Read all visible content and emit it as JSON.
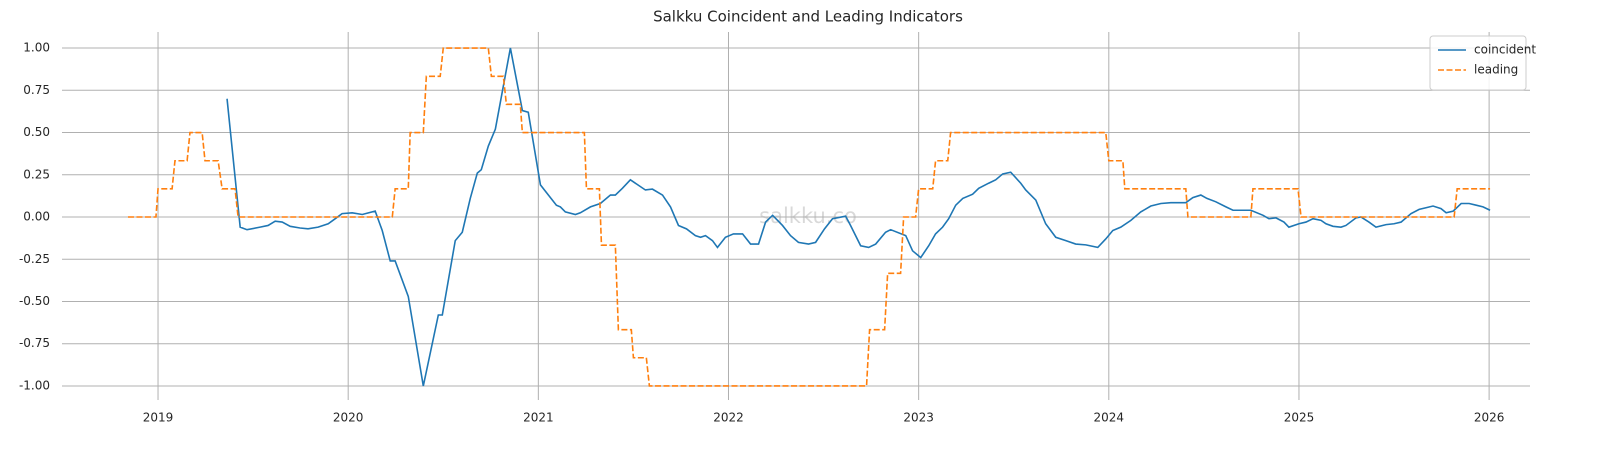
{
  "chart_data": {
    "type": "line",
    "title": "Salkku Coincident and Leading Indicators",
    "annotation": "salkku.co",
    "xlim": [
      2018.495,
      2026.215
    ],
    "xticks": [
      2019,
      2020,
      2021,
      2022,
      2023,
      2024,
      2025,
      2026
    ],
    "ylim": [
      -1.083,
      1.095
    ],
    "yticks": [
      {
        "value": -1,
        "label": "-1.00"
      },
      {
        "value": -0.75,
        "label": "-0.75"
      },
      {
        "value": -0.5,
        "label": "-0.50"
      },
      {
        "value": -0.25,
        "label": "-0.25"
      },
      {
        "value": 0,
        "label": "0.00"
      },
      {
        "value": 0.25,
        "label": "0.25"
      },
      {
        "value": 0.5,
        "label": "0.50"
      },
      {
        "value": 0.75,
        "label": "0.75"
      },
      {
        "value": 1,
        "label": "1.00"
      }
    ],
    "grid": true,
    "legend": "upper right",
    "series": [
      {
        "name": "coincident",
        "color": "#1f77b4",
        "linestyle": "solid",
        "x": [
          2019.363,
          2019.432,
          2019.468,
          2019.537,
          2019.579,
          2019.616,
          2019.653,
          2019.695,
          2019.747,
          2019.789,
          2019.842,
          2019.895,
          2019.932,
          2019.968,
          2020.021,
          2020.074,
          2020.142,
          2020.179,
          2020.221,
          2020.247,
          2020.316,
          2020.395,
          2020.474,
          2020.495,
          2020.563,
          2020.6,
          2020.642,
          2020.679,
          2020.7,
          2020.737,
          2020.774,
          2020.853,
          2020.916,
          2020.947,
          2021.011,
          2021.095,
          2021.116,
          2021.142,
          2021.195,
          2021.221,
          2021.274,
          2021.326,
          2021.379,
          2021.405,
          2021.442,
          2021.484,
          2021.563,
          2021.6,
          2021.653,
          2021.695,
          2021.737,
          2021.779,
          2021.826,
          2021.853,
          2021.879,
          2021.916,
          2021.942,
          2021.984,
          2022.026,
          2022.074,
          2022.116,
          2022.158,
          2022.195,
          2022.232,
          2022.284,
          2022.326,
          2022.368,
          2022.421,
          2022.458,
          2022.505,
          2022.547,
          2022.616,
          2022.642,
          2022.695,
          2022.737,
          2022.774,
          2022.826,
          2022.853,
          2022.932,
          2022.968,
          2023.011,
          2023.053,
          2023.089,
          2023.126,
          2023.158,
          2023.195,
          2023.232,
          2023.284,
          2023.316,
          2023.368,
          2023.405,
          2023.442,
          2023.484,
          2023.537,
          2023.563,
          2023.616,
          2023.668,
          2023.721,
          2023.774,
          2023.826,
          2023.879,
          2023.942,
          2023.984,
          2024.021,
          2024.063,
          2024.116,
          2024.168,
          2024.221,
          2024.274,
          2024.326,
          2024.405,
          2024.442,
          2024.484,
          2024.516,
          2024.563,
          2024.616,
          2024.653,
          2024.747,
          2024.811,
          2024.842,
          2024.879,
          2024.921,
          2024.947,
          2025.0,
          2025.037,
          2025.074,
          2025.116,
          2025.142,
          2025.179,
          2025.221,
          2025.247,
          2025.3,
          2025.326,
          2025.368,
          2025.405,
          2025.458,
          2025.5,
          2025.537,
          2025.589,
          2025.632,
          2025.668,
          2025.705,
          2025.747,
          2025.774,
          2025.811,
          2025.853,
          2025.895,
          2025.932,
          2025.968,
          2026.005
        ],
        "values": [
          0.7,
          -0.06,
          -0.075,
          -0.06,
          -0.05,
          -0.025,
          -0.03,
          -0.055,
          -0.065,
          -0.07,
          -0.06,
          -0.04,
          -0.01,
          0.02,
          0.025,
          0.015,
          0.035,
          -0.08,
          -0.26,
          -0.26,
          -0.47,
          -1.0,
          -0.58,
          -0.58,
          -0.14,
          -0.09,
          0.11,
          0.26,
          0.28,
          0.42,
          0.52,
          1.0,
          0.63,
          0.62,
          0.19,
          0.07,
          0.06,
          0.03,
          0.015,
          0.025,
          0.06,
          0.08,
          0.13,
          0.13,
          0.17,
          0.22,
          0.16,
          0.165,
          0.13,
          0.06,
          -0.05,
          -0.07,
          -0.11,
          -0.12,
          -0.11,
          -0.14,
          -0.18,
          -0.12,
          -0.1,
          -0.1,
          -0.16,
          -0.16,
          -0.03,
          0.01,
          -0.05,
          -0.11,
          -0.15,
          -0.16,
          -0.15,
          -0.07,
          -0.01,
          0.005,
          -0.05,
          -0.17,
          -0.18,
          -0.16,
          -0.09,
          -0.075,
          -0.11,
          -0.2,
          -0.24,
          -0.17,
          -0.1,
          -0.06,
          -0.01,
          0.07,
          0.11,
          0.135,
          0.17,
          0.2,
          0.22,
          0.255,
          0.265,
          0.2,
          0.16,
          0.1,
          -0.04,
          -0.12,
          -0.14,
          -0.16,
          -0.165,
          -0.18,
          -0.13,
          -0.08,
          -0.06,
          -0.02,
          0.03,
          0.065,
          0.08,
          0.085,
          0.085,
          0.115,
          0.13,
          0.11,
          0.09,
          0.06,
          0.04,
          0.04,
          0.01,
          -0.01,
          -0.005,
          -0.03,
          -0.06,
          -0.04,
          -0.03,
          -0.01,
          -0.02,
          -0.04,
          -0.055,
          -0.06,
          -0.05,
          -0.005,
          0,
          -0.03,
          -0.06,
          -0.045,
          -0.04,
          -0.03,
          0.02,
          0.045,
          0.055,
          0.065,
          0.05,
          0.025,
          0.035,
          0.08,
          0.08,
          0.07,
          0.06,
          0.04
        ]
      },
      {
        "name": "leading",
        "color": "#ff7f0e",
        "linestyle": "dashed",
        "x": [
          2018.842,
          2018.989,
          2019.0,
          2019.074,
          2019.089,
          2019.153,
          2019.168,
          2019.232,
          2019.247,
          2019.316,
          2019.337,
          2019.405,
          2019.421,
          2020.232,
          2020.247,
          2020.316,
          2020.326,
          2020.395,
          2020.411,
          2020.484,
          2020.5,
          2020.737,
          2020.753,
          2020.816,
          2020.832,
          2020.905,
          2020.916,
          2021.242,
          2021.253,
          2021.321,
          2021.332,
          2021.405,
          2021.421,
          2021.489,
          2021.5,
          2021.568,
          2021.584,
          2022.726,
          2022.742,
          2022.821,
          2022.837,
          2022.905,
          2022.921,
          2022.984,
          2023.0,
          2023.074,
          2023.089,
          2023.153,
          2023.168,
          2023.984,
          2024.0,
          2024.074,
          2024.084,
          2024.405,
          2024.416,
          2024.747,
          2024.758,
          2024.995,
          2025.011,
          2025.816,
          2025.832,
          2026.005
        ],
        "values": [
          0,
          0,
          0.167,
          0.167,
          0.333,
          0.333,
          0.5,
          0.5,
          0.333,
          0.333,
          0.167,
          0.167,
          0,
          0,
          0.167,
          0.167,
          0.5,
          0.5,
          0.833,
          0.833,
          1,
          1,
          0.833,
          0.833,
          0.667,
          0.667,
          0.5,
          0.5,
          0.167,
          0.167,
          -0.167,
          -0.167,
          -0.667,
          -0.667,
          -0.833,
          -0.833,
          -1,
          -1,
          -0.667,
          -0.667,
          -0.333,
          -0.333,
          0,
          0,
          0.167,
          0.167,
          0.333,
          0.333,
          0.5,
          0.5,
          0.333,
          0.333,
          0.167,
          0.167,
          0,
          0,
          0.167,
          0.167,
          0,
          0,
          0.167,
          0.167
        ]
      }
    ]
  }
}
